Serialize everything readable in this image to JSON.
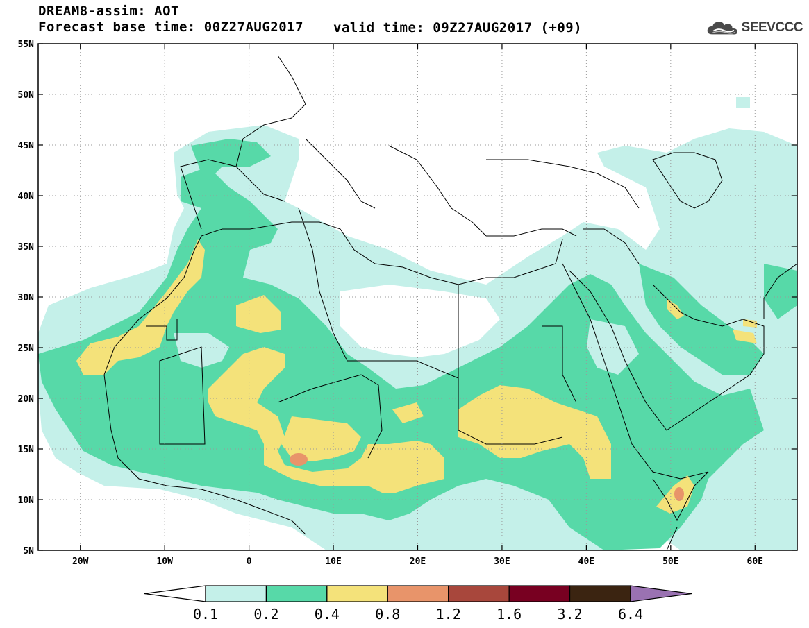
{
  "header": {
    "title": "DREAM8-assim: AOT",
    "base_time": "Forecast base time: 00Z27AUG2017",
    "valid_time": "valid time: 09Z27AUG2017 (+09)"
  },
  "logo": {
    "text": "SEEVCCC",
    "icon": "cloud-icon"
  },
  "map": {
    "projection": "cylindrical",
    "lon_range": [
      -25,
      65
    ],
    "lat_range": [
      5,
      55
    ],
    "lat_labels": [
      "55N",
      "50N",
      "45N",
      "40N",
      "35N",
      "30N",
      "25N",
      "20N",
      "15N",
      "10N",
      "5N"
    ],
    "lat_values": [
      55,
      50,
      45,
      40,
      35,
      30,
      25,
      20,
      15,
      10,
      5
    ],
    "lon_labels": [
      "20W",
      "10W",
      "0",
      "10E",
      "20E",
      "30E",
      "40E",
      "50E",
      "60E"
    ],
    "lon_values": [
      -20,
      -10,
      0,
      10,
      20,
      30,
      40,
      50,
      60
    ],
    "grid": "dotted"
  },
  "colorbar": {
    "levels": [
      "0.1",
      "0.2",
      "0.4",
      "0.8",
      "1.2",
      "1.6",
      "3.2",
      "6.4"
    ],
    "colors": [
      "#ffffff",
      "#c4f0e9",
      "#57d9a8",
      "#f4e27a",
      "#e8946a",
      "#a8473c",
      "#780021",
      "#3b2411",
      "#9a72b2"
    ]
  }
}
